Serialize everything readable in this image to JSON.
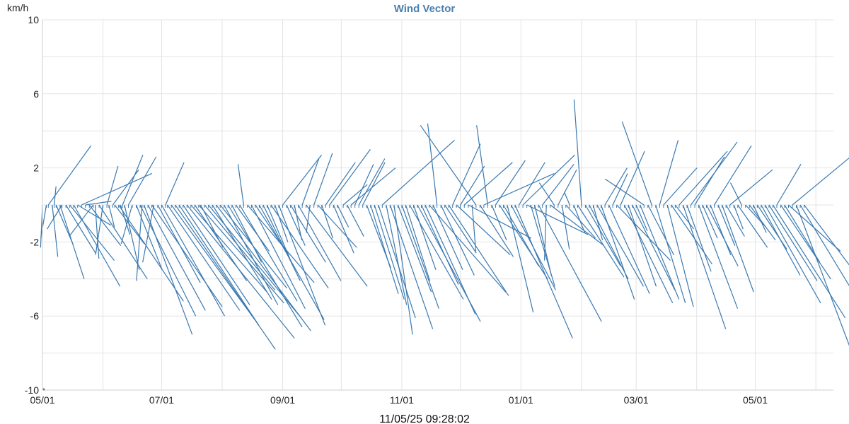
{
  "chart_data": {
    "type": "wind-vector",
    "title": "Wind Vector",
    "ylabel": "km/h",
    "ylim": [
      -10,
      10
    ],
    "y_ticks": [
      10,
      6,
      2,
      -2,
      -6,
      -10
    ],
    "x_tick_labels": [
      "05/01",
      "07/01",
      "09/01",
      "11/01",
      "01/01",
      "03/01",
      "05/01"
    ],
    "x_tick_dates": [
      "2024-05-01",
      "2024-07-01",
      "2024-09-01",
      "2024-11-01",
      "2025-01-01",
      "2025-03-01",
      "2025-05-01"
    ],
    "x_range": [
      "2024-05-01",
      "2025-06-10"
    ],
    "grid": true,
    "color": "#3a79b0",
    "bottom_left_marker": "*",
    "timestamp": "11/05/25 09:28:02",
    "vectors": [
      {
        "date": "2024-05-01",
        "u": -0.1,
        "v": -2.3
      },
      {
        "date": "2024-05-03",
        "u": -0.3,
        "v": -1.8
      },
      {
        "date": "2024-05-04",
        "u": 2.3,
        "v": 3.2
      },
      {
        "date": "2024-05-06",
        "u": 0.3,
        "v": -2.8
      },
      {
        "date": "2024-05-07",
        "u": 0.1,
        "v": 1.0
      },
      {
        "date": "2024-05-08",
        "u": 0.9,
        "v": -2.1
      },
      {
        "date": "2024-05-10",
        "u": 1.3,
        "v": -4.0
      },
      {
        "date": "2024-05-11",
        "u": -0.8,
        "v": -1.3
      },
      {
        "date": "2024-05-13",
        "u": 1.6,
        "v": -2.6
      },
      {
        "date": "2024-05-15",
        "u": 2.4,
        "v": -3.0
      },
      {
        "date": "2024-05-17",
        "u": 2.5,
        "v": -4.4
      },
      {
        "date": "2024-05-19",
        "u": 1.8,
        "v": -1.1
      },
      {
        "date": "2024-05-21",
        "u": 3.8,
        "v": 1.7
      },
      {
        "date": "2024-05-23",
        "u": 1.4,
        "v": 0.2
      },
      {
        "date": "2024-05-25",
        "u": 1.7,
        "v": -2.2
      },
      {
        "date": "2024-05-27",
        "u": -1.3,
        "v": -1.7
      },
      {
        "date": "2024-05-28",
        "u": 0.2,
        "v": -2.9
      },
      {
        "date": "2024-05-30",
        "u": 2.6,
        "v": -4.0
      },
      {
        "date": "2024-06-01",
        "u": -0.4,
        "v": -2.7
      },
      {
        "date": "2024-06-03",
        "u": 0.6,
        "v": 2.1
      },
      {
        "date": "2024-06-04",
        "u": 0.3,
        "v": -1.2
      },
      {
        "date": "2024-06-06",
        "u": 1.4,
        "v": 1.9
      },
      {
        "date": "2024-06-07",
        "u": 1.6,
        "v": -2.1
      },
      {
        "date": "2024-06-09",
        "u": 3.5,
        "v": -5.2
      },
      {
        "date": "2024-06-10",
        "u": 0.5,
        "v": -1.6
      },
      {
        "date": "2024-06-11",
        "u": 1.1,
        "v": 2.7
      },
      {
        "date": "2024-06-12",
        "u": 0.8,
        "v": -3.5
      },
      {
        "date": "2024-06-14",
        "u": 1.5,
        "v": 2.6
      },
      {
        "date": "2024-06-16",
        "u": -0.6,
        "v": -2.1
      },
      {
        "date": "2024-06-18",
        "u": 1.4,
        "v": -3.5
      },
      {
        "date": "2024-06-20",
        "u": 3.0,
        "v": -6.0
      },
      {
        "date": "2024-06-21",
        "u": -0.3,
        "v": -4.1
      },
      {
        "date": "2024-06-22",
        "u": 2.6,
        "v": -7.0
      },
      {
        "date": "2024-06-24",
        "u": 3.1,
        "v": -5.7
      },
      {
        "date": "2024-06-26",
        "u": 3.8,
        "v": -5.5
      },
      {
        "date": "2024-06-27",
        "u": -0.6,
        "v": -3.1
      },
      {
        "date": "2024-06-29",
        "u": 2.3,
        "v": -4.2
      },
      {
        "date": "2024-07-01",
        "u": 3.4,
        "v": -6.0
      },
      {
        "date": "2024-07-03",
        "u": 1.0,
        "v": 2.3
      },
      {
        "date": "2024-07-04",
        "u": 3.9,
        "v": -5.7
      },
      {
        "date": "2024-07-06",
        "u": 4.5,
        "v": -6.2
      },
      {
        "date": "2024-07-08",
        "u": 5.4,
        "v": -7.8
      },
      {
        "date": "2024-07-10",
        "u": 4.3,
        "v": -6.5
      },
      {
        "date": "2024-07-12",
        "u": 3.6,
        "v": -5.4
      },
      {
        "date": "2024-07-14",
        "u": 5.8,
        "v": -7.2
      },
      {
        "date": "2024-07-16",
        "u": 4.1,
        "v": -4.7
      },
      {
        "date": "2024-07-18",
        "u": 2.8,
        "v": -4.1
      },
      {
        "date": "2024-07-20",
        "u": 4.6,
        "v": -5.3
      },
      {
        "date": "2024-07-21",
        "u": 1.2,
        "v": -2.3
      },
      {
        "date": "2024-07-23",
        "u": 3.8,
        "v": -4.6
      },
      {
        "date": "2024-07-25",
        "u": 5.0,
        "v": -6.1
      },
      {
        "date": "2024-07-27",
        "u": 3.2,
        "v": -5.1
      },
      {
        "date": "2024-07-29",
        "u": 5.1,
        "v": -6.8
      },
      {
        "date": "2024-07-31",
        "u": 3.6,
        "v": -4.5
      },
      {
        "date": "2024-08-02",
        "u": 2.9,
        "v": -5.4
      },
      {
        "date": "2024-08-04",
        "u": 4.0,
        "v": -6.6
      },
      {
        "date": "2024-08-06",
        "u": 1.6,
        "v": -3.1
      },
      {
        "date": "2024-08-08",
        "u": 1.8,
        "v": -2.5
      },
      {
        "date": "2024-08-10",
        "u": 3.1,
        "v": -5.2
      },
      {
        "date": "2024-08-12",
        "u": -0.3,
        "v": 2.2
      },
      {
        "date": "2024-08-14",
        "u": 3.6,
        "v": -4.2
      },
      {
        "date": "2024-08-16",
        "u": 2.9,
        "v": -5.6
      },
      {
        "date": "2024-08-18",
        "u": 1.8,
        "v": -2.7
      },
      {
        "date": "2024-08-20",
        "u": 3.5,
        "v": -6.2
      },
      {
        "date": "2024-08-22",
        "u": 2.0,
        "v": -4.1
      },
      {
        "date": "2024-08-24",
        "u": 1.4,
        "v": -3.3
      },
      {
        "date": "2024-08-26",
        "u": 3.1,
        "v": -4.5
      },
      {
        "date": "2024-08-28",
        "u": 0.7,
        "v": -2.0
      },
      {
        "date": "2024-08-30",
        "u": 2.5,
        "v": -6.5
      },
      {
        "date": "2024-09-01",
        "u": 2.1,
        "v": 2.7
      },
      {
        "date": "2024-09-03",
        "u": 1.0,
        "v": -2.2
      },
      {
        "date": "2024-09-05",
        "u": 1.9,
        "v": -3.1
      },
      {
        "date": "2024-09-07",
        "u": 0.4,
        "v": -1.9
      },
      {
        "date": "2024-09-09",
        "u": 2.3,
        "v": -4.1
      },
      {
        "date": "2024-09-11",
        "u": 0.9,
        "v": 2.5
      },
      {
        "date": "2024-09-13",
        "u": 3.3,
        "v": -4.4
      },
      {
        "date": "2024-09-15",
        "u": -0.2,
        "v": -1.5
      },
      {
        "date": "2024-09-17",
        "u": 1.0,
        "v": 2.8
      },
      {
        "date": "2024-09-19",
        "u": 2.1,
        "v": -2.3
      },
      {
        "date": "2024-09-21",
        "u": 0.6,
        "v": -1.8
      },
      {
        "date": "2024-09-23",
        "u": 1.6,
        "v": 2.3
      },
      {
        "date": "2024-09-25",
        "u": 2.2,
        "v": 3.0
      },
      {
        "date": "2024-09-27",
        "u": 1.1,
        "v": -2.6
      },
      {
        "date": "2024-09-29",
        "u": 0.6,
        "v": -1.2
      },
      {
        "date": "2024-10-02",
        "u": 1.3,
        "v": 1.1
      },
      {
        "date": "2024-10-04",
        "u": 0.9,
        "v": -1.7
      },
      {
        "date": "2024-10-06",
        "u": 2.4,
        "v": 2.0
      },
      {
        "date": "2024-10-08",
        "u": 1.0,
        "v": 2.2
      },
      {
        "date": "2024-10-10",
        "u": 1.4,
        "v": 2.5
      },
      {
        "date": "2024-10-12",
        "u": 1.2,
        "v": 2.3
      },
      {
        "date": "2024-10-14",
        "u": 1.3,
        "v": -3.4
      },
      {
        "date": "2024-10-16",
        "u": 1.5,
        "v": -4.8
      },
      {
        "date": "2024-10-18",
        "u": 1.6,
        "v": -5.1
      },
      {
        "date": "2024-10-20",
        "u": 2.0,
        "v": -6.1
      },
      {
        "date": "2024-10-22",
        "u": 3.9,
        "v": 3.5
      },
      {
        "date": "2024-10-24",
        "u": 1.1,
        "v": -5.4
      },
      {
        "date": "2024-10-26",
        "u": 2.3,
        "v": -6.7
      },
      {
        "date": "2024-10-28",
        "u": 1.0,
        "v": -7.0
      },
      {
        "date": "2024-10-30",
        "u": 1.8,
        "v": -4.7
      },
      {
        "date": "2024-11-01",
        "u": 2.0,
        "v": -5.6
      },
      {
        "date": "2024-11-03",
        "u": 1.3,
        "v": -4.1
      },
      {
        "date": "2024-11-05",
        "u": 2.9,
        "v": -5.1
      },
      {
        "date": "2024-11-07",
        "u": 1.2,
        "v": -3.5
      },
      {
        "date": "2024-11-09",
        "u": 3.4,
        "v": -6.3
      },
      {
        "date": "2024-11-11",
        "u": 2.0,
        "v": -4.3
      },
      {
        "date": "2024-11-13",
        "u": 2.7,
        "v": -5.9
      },
      {
        "date": "2024-11-15",
        "u": 4.3,
        "v": -4.9
      },
      {
        "date": "2024-11-17",
        "u": 1.6,
        "v": -3.5
      },
      {
        "date": "2024-11-19",
        "u": -0.5,
        "v": 4.4
      },
      {
        "date": "2024-11-21",
        "u": 1.8,
        "v": -3.8
      },
      {
        "date": "2024-11-23",
        "u": 1.7,
        "v": -2.6
      },
      {
        "date": "2024-11-25",
        "u": 3.1,
        "v": -4.7
      },
      {
        "date": "2024-11-27",
        "u": 1.5,
        "v": 3.3
      },
      {
        "date": "2024-11-29",
        "u": 2.9,
        "v": -2.7
      },
      {
        "date": "2024-12-01",
        "u": 1.3,
        "v": 2.1
      },
      {
        "date": "2024-12-03",
        "u": 2.6,
        "v": 2.3
      },
      {
        "date": "2024-12-05",
        "u": 3.4,
        "v": -1.8
      },
      {
        "date": "2024-12-07",
        "u": 0.2,
        "v": -2.5
      },
      {
        "date": "2024-12-09",
        "u": -3.0,
        "v": 4.3
      },
      {
        "date": "2024-12-11",
        "u": 1.8,
        "v": -2.8
      },
      {
        "date": "2024-12-13",
        "u": 3.8,
        "v": 1.7
      },
      {
        "date": "2024-12-15",
        "u": -0.6,
        "v": 4.3
      },
      {
        "date": "2024-12-17",
        "u": 0.8,
        "v": -1.9
      },
      {
        "date": "2024-12-19",
        "u": 1.6,
        "v": 2.4
      },
      {
        "date": "2024-12-21",
        "u": 2.6,
        "v": -4.0
      },
      {
        "date": "2024-12-23",
        "u": 1.9,
        "v": -3.3
      },
      {
        "date": "2024-12-25",
        "u": 1.4,
        "v": -5.8
      },
      {
        "date": "2024-12-27",
        "u": 2.4,
        "v": -4.6
      },
      {
        "date": "2024-12-29",
        "u": 3.1,
        "v": -7.2
      },
      {
        "date": "2024-12-31",
        "u": 1.4,
        "v": 2.3
      },
      {
        "date": "2025-01-02",
        "u": 2.8,
        "v": 2.7
      },
      {
        "date": "2025-01-04",
        "u": 3.3,
        "v": -1.6
      },
      {
        "date": "2025-01-06",
        "u": 1.3,
        "v": -4.4
      },
      {
        "date": "2025-01-08",
        "u": 0.9,
        "v": -3.8
      },
      {
        "date": "2025-01-10",
        "u": 3.4,
        "v": -6.3
      },
      {
        "date": "2025-01-12",
        "u": 1.7,
        "v": 2.2
      },
      {
        "date": "2025-01-14",
        "u": -0.1,
        "v": -3.0
      },
      {
        "date": "2025-01-16",
        "u": 2.9,
        "v": -2.2
      },
      {
        "date": "2025-01-18",
        "u": -0.8,
        "v": 1.2
      },
      {
        "date": "2025-01-20",
        "u": 1.0,
        "v": 1.9
      },
      {
        "date": "2025-01-22",
        "u": 0.4,
        "v": -2.4
      },
      {
        "date": "2025-01-24",
        "u": 1.6,
        "v": -1.8
      },
      {
        "date": "2025-01-26",
        "u": -0.3,
        "v": 0.7
      },
      {
        "date": "2025-01-28",
        "u": 0.6,
        "v": -1.5
      },
      {
        "date": "2025-01-30",
        "u": 2.5,
        "v": -3.9
      },
      {
        "date": "2025-02-01",
        "u": -0.4,
        "v": 5.7
      },
      {
        "date": "2025-02-03",
        "u": 1.9,
        "v": -3.3
      },
      {
        "date": "2025-02-05",
        "u": 2.1,
        "v": -4.0
      },
      {
        "date": "2025-02-07",
        "u": 0.5,
        "v": -1.9
      },
      {
        "date": "2025-02-09",
        "u": 2.5,
        "v": -4.4
      },
      {
        "date": "2025-02-11",
        "u": 1.8,
        "v": -5.1
      },
      {
        "date": "2025-02-13",
        "u": 1.2,
        "v": 2.0
      },
      {
        "date": "2025-02-15",
        "u": 2.2,
        "v": -4.8
      },
      {
        "date": "2025-02-17",
        "u": 0.8,
        "v": 1.7
      },
      {
        "date": "2025-02-19",
        "u": 2.9,
        "v": -3.0
      },
      {
        "date": "2025-02-21",
        "u": 1.3,
        "v": 2.9
      },
      {
        "date": "2025-02-23",
        "u": 2.6,
        "v": -5.3
      },
      {
        "date": "2025-02-25",
        "u": 1.5,
        "v": -4.4
      },
      {
        "date": "2025-02-27",
        "u": 2.3,
        "v": -4.6
      },
      {
        "date": "2025-03-01",
        "u": 0.6,
        "v": -1.4
      },
      {
        "date": "2025-03-03",
        "u": 2.1,
        "v": -5.1
      },
      {
        "date": "2025-03-05",
        "u": -2.1,
        "v": 1.4
      },
      {
        "date": "2025-03-07",
        "u": 1.4,
        "v": -2.7
      },
      {
        "date": "2025-03-09",
        "u": -1.6,
        "v": 4.5
      },
      {
        "date": "2025-03-11",
        "u": 1.6,
        "v": -5.3
      },
      {
        "date": "2025-03-13",
        "u": 1.0,
        "v": 3.5
      },
      {
        "date": "2025-03-15",
        "u": 1.8,
        "v": 2.0
      },
      {
        "date": "2025-03-17",
        "u": 1.4,
        "v": -5.5
      },
      {
        "date": "2025-03-19",
        "u": 2.2,
        "v": -3.2
      },
      {
        "date": "2025-03-21",
        "u": 1.0,
        "v": -1.3
      },
      {
        "date": "2025-03-23",
        "u": 2.6,
        "v": 2.9
      },
      {
        "date": "2025-03-25",
        "u": 2.3,
        "v": -6.7
      },
      {
        "date": "2025-03-27",
        "u": 1.3,
        "v": -3.6
      },
      {
        "date": "2025-03-29",
        "u": 2.5,
        "v": 3.4
      },
      {
        "date": "2025-03-31",
        "u": 1.6,
        "v": 2.6
      },
      {
        "date": "2025-04-02",
        "u": 2.1,
        "v": -5.6
      },
      {
        "date": "2025-04-04",
        "u": 0.8,
        "v": -1.8
      },
      {
        "date": "2025-04-06",
        "u": 1.7,
        "v": -3.3
      },
      {
        "date": "2025-04-08",
        "u": 1.1,
        "v": -2.7
      },
      {
        "date": "2025-04-10",
        "u": 2.0,
        "v": 3.2
      },
      {
        "date": "2025-04-12",
        "u": 0.9,
        "v": -2.2
      },
      {
        "date": "2025-04-14",
        "u": 1.7,
        "v": -4.7
      },
      {
        "date": "2025-04-16",
        "u": 1.0,
        "v": -1.7
      },
      {
        "date": "2025-04-18",
        "u": 2.3,
        "v": 1.9
      },
      {
        "date": "2025-04-20",
        "u": 0.5,
        "v": -1.3
      },
      {
        "date": "2025-04-22",
        "u": 1.6,
        "v": -2.3
      },
      {
        "date": "2025-04-24",
        "u": -0.6,
        "v": 1.2
      },
      {
        "date": "2025-04-26",
        "u": 1.1,
        "v": -1.2
      },
      {
        "date": "2025-04-28",
        "u": 1.4,
        "v": -1.9
      },
      {
        "date": "2025-04-30",
        "u": 0.7,
        "v": -1.5
      },
      {
        "date": "2025-05-02",
        "u": 1.6,
        "v": -2.4
      },
      {
        "date": "2025-05-04",
        "u": 2.1,
        "v": -3.8
      },
      {
        "date": "2025-05-06",
        "u": 3.0,
        "v": -5.3
      },
      {
        "date": "2025-05-08",
        "u": 2.6,
        "v": -4.1
      },
      {
        "date": "2025-05-10",
        "u": 3.9,
        "v": -6.1
      },
      {
        "date": "2025-05-12",
        "u": 1.3,
        "v": 2.2
      },
      {
        "date": "2025-05-14",
        "u": 2.7,
        "v": -4.0
      },
      {
        "date": "2025-05-16",
        "u": 1.9,
        "v": -3.1
      },
      {
        "date": "2025-05-18",
        "u": 2.8,
        "v": -2.5
      },
      {
        "date": "2025-05-20",
        "u": 3.5,
        "v": 2.9
      },
      {
        "date": "2025-05-22",
        "u": 3.2,
        "v": -8.5
      },
      {
        "date": "2025-05-24",
        "u": 4.0,
        "v": -6.6
      },
      {
        "date": "2025-05-26",
        "u": 4.2,
        "v": -5.6
      }
    ]
  }
}
